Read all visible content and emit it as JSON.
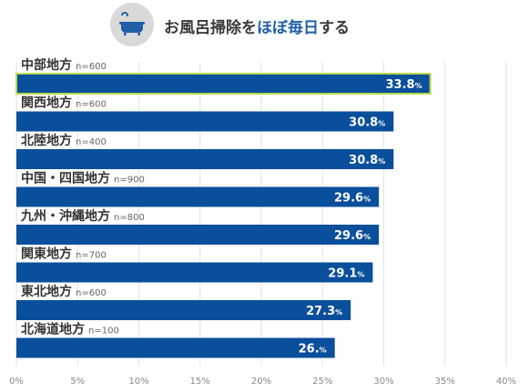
{
  "header": {
    "title_pre": "お風呂掃除を",
    "title_highlight": "ほぼ毎日",
    "title_post": "する",
    "icon": "bathtub-icon"
  },
  "colors": {
    "bar": "#0a4f9b",
    "bar_highlight_border": "#b7d94a",
    "highlight_text": "#1f5fa8",
    "grid": "#e2e2e2",
    "icon_bg": "#d9d9d9"
  },
  "chart_data": {
    "type": "bar",
    "orientation": "horizontal",
    "title": "お風呂掃除をほぼ毎日する",
    "categories": [
      "中部地方",
      "関西地方",
      "北陸地方",
      "中国・四国地方",
      "九州・沖縄地方",
      "関東地方",
      "東北地方",
      "北海道地方"
    ],
    "sample_sizes": [
      "n=600",
      "n=600",
      "n=400",
      "n=900",
      "n=800",
      "n=700",
      "n=600",
      "n=100"
    ],
    "values": [
      33.8,
      30.8,
      30.8,
      29.6,
      29.6,
      29.1,
      27.3,
      26.0
    ],
    "value_labels": [
      "33.8",
      "30.8",
      "30.8",
      "29.6",
      "29.6",
      "29.1",
      "27.3",
      "26."
    ],
    "value_unit": "%",
    "highlighted_index": 0,
    "xlim": [
      0,
      40
    ],
    "xticks": [
      "0%",
      "5%",
      "10%",
      "15%",
      "20%",
      "25%",
      "30%",
      "35%",
      "40%"
    ],
    "grid": true
  }
}
